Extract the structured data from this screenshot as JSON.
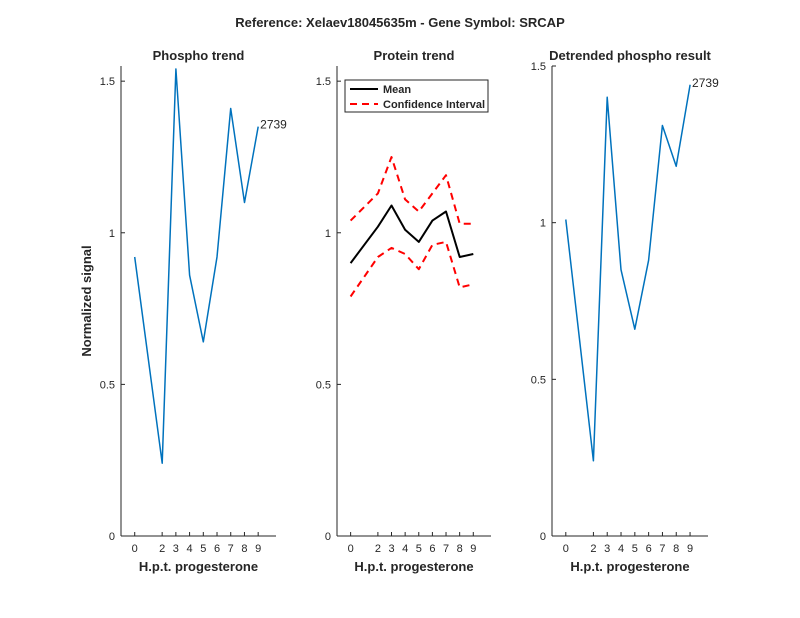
{
  "figure": {
    "suptitle": "Reference:  Xelaev18045635m - Gene Symbol:  SRCAP"
  },
  "chart_data": [
    {
      "type": "line",
      "title": "Phospho trend",
      "xlabel": "H.p.t. progesterone",
      "ylabel": "Normalized signal",
      "x": [
        0,
        2,
        3,
        4,
        5,
        6,
        7,
        8,
        9
      ],
      "xticks": [
        "0",
        "2",
        "3",
        "4",
        "5",
        "6",
        "7",
        "8",
        "9"
      ],
      "xlim": [
        -1,
        10.3
      ],
      "ylim": [
        0,
        1.55
      ],
      "yticks": [
        "0",
        "0.5",
        "1",
        "1.5"
      ],
      "series": [
        {
          "color": "#0072BD",
          "style": "solid",
          "values": [
            0.92,
            0.24,
            1.54,
            0.86,
            0.64,
            0.92,
            1.41,
            1.1,
            1.35
          ]
        }
      ],
      "annotations": [
        {
          "text": "2739",
          "x": 9,
          "y": 1.35
        }
      ]
    },
    {
      "type": "line",
      "title": "Protein trend",
      "xlabel": "H.p.t. progesterone",
      "ylabel": "",
      "x": [
        0,
        2,
        3,
        4,
        5,
        6,
        7,
        8,
        9
      ],
      "xticks": [
        "0",
        "2",
        "3",
        "4",
        "5",
        "6",
        "7",
        "8",
        "9"
      ],
      "xlim": [
        -1,
        10.3
      ],
      "ylim": [
        0,
        1.55
      ],
      "yticks": [
        "0",
        "0.5",
        "1",
        "1.5"
      ],
      "legend": {
        "location": "top-right"
      },
      "series": [
        {
          "name": "Mean",
          "color": "#000000",
          "style": "solid",
          "values": [
            0.9,
            1.02,
            1.09,
            1.01,
            0.97,
            1.04,
            1.07,
            0.92,
            0.93
          ]
        },
        {
          "name": "Confidence Interval",
          "color": "#FF0000",
          "style": "dashed",
          "values": [
            1.04,
            1.13,
            1.25,
            1.11,
            1.07,
            1.13,
            1.19,
            1.03,
            1.03
          ]
        },
        {
          "color": "#FF0000",
          "style": "dashed",
          "values": [
            0.79,
            0.92,
            0.95,
            0.93,
            0.88,
            0.96,
            0.97,
            0.82,
            0.83
          ]
        }
      ],
      "annotations": []
    },
    {
      "type": "line",
      "title": "Detrended phospho result",
      "xlabel": "H.p.t. progesterone",
      "ylabel": "",
      "x": [
        0,
        2,
        3,
        4,
        5,
        6,
        7,
        8,
        9
      ],
      "xticks": [
        "0",
        "2",
        "3",
        "4",
        "5",
        "6",
        "7",
        "8",
        "9"
      ],
      "xlim": [
        -1,
        10.3
      ],
      "ylim": [
        0,
        1.5
      ],
      "yticks": [
        "0",
        "0.5",
        "1",
        "1.5"
      ],
      "series": [
        {
          "color": "#0072BD",
          "style": "solid",
          "values": [
            1.01,
            0.24,
            1.4,
            0.85,
            0.66,
            0.88,
            1.31,
            1.18,
            1.44
          ]
        }
      ],
      "annotations": [
        {
          "text": "2739",
          "x": 9,
          "y": 1.44
        }
      ]
    }
  ]
}
